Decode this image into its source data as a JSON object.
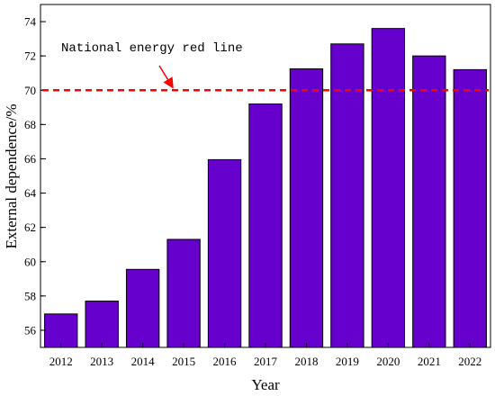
{
  "chart_data": {
    "type": "bar",
    "categories": [
      "2012",
      "2013",
      "2014",
      "2015",
      "2016",
      "2017",
      "2018",
      "2019",
      "2020",
      "2021",
      "2022"
    ],
    "values": [
      56.95,
      57.7,
      59.55,
      61.3,
      65.95,
      69.2,
      71.25,
      72.7,
      73.6,
      72.0,
      71.2
    ],
    "title": "",
    "xlabel": "Year",
    "ylabel": "External dependence/%",
    "ylim": [
      55,
      75
    ],
    "yticks": [
      56,
      58,
      60,
      62,
      64,
      66,
      68,
      70,
      72,
      74
    ],
    "bar_color": "#6600CC",
    "grid": false,
    "reference_line": {
      "value": 70,
      "color": "#FF0000",
      "style": "dashed",
      "label": "National energy red line"
    }
  }
}
